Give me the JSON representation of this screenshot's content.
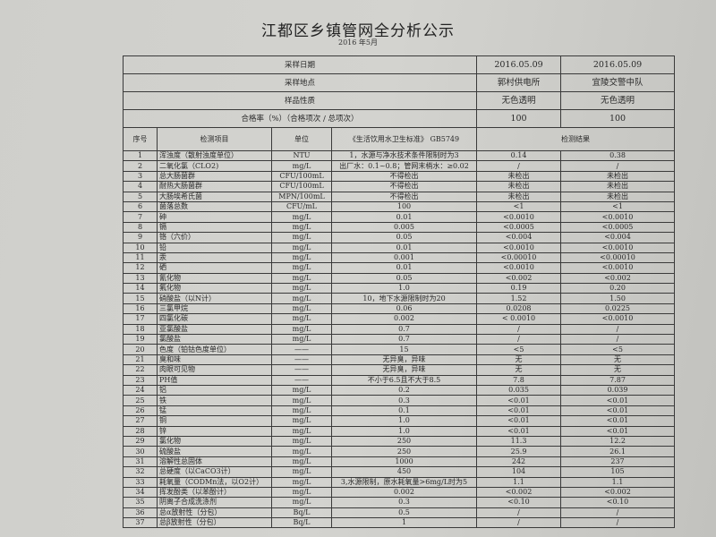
{
  "title": "江都区乡镇管网全分析公示",
  "subtitle": "2016 年5月",
  "header_rows": [
    {
      "label": "采样日期",
      "values": [
        "2016.05.09",
        "2016.05.09"
      ]
    },
    {
      "label": "采样地点",
      "values": [
        "郭村供电所",
        "宜陵交警中队"
      ]
    },
    {
      "label": "样品性质",
      "values": [
        "无色透明",
        "无色透明"
      ]
    },
    {
      "label": "合格率（%）（合格项次 / 总项次）",
      "values": [
        "100",
        "100"
      ]
    }
  ],
  "columns": {
    "seq": "序号",
    "item": "检测项目",
    "unit": "单位",
    "standard": "《生活饮用水卫生标准》 GB5749",
    "result": "检测结果"
  },
  "rows": [
    [
      "1",
      "浑浊度（散射浊度单位）",
      "NTU",
      "1，水源与净水技术条件限制时为3",
      "0.14",
      "0.38"
    ],
    [
      "2",
      "二氧化氯（CLO2)",
      "mg/L",
      "出厂水：0.1~0.8；管网末梢水：≥0.02",
      "/",
      "/"
    ],
    [
      "3",
      "总大肠菌群",
      "CFU/100mL",
      "不得检出",
      "未检出",
      "未检出"
    ],
    [
      "4",
      "耐热大肠菌群",
      "CFU/100mL",
      "不得检出",
      "未检出",
      "未检出"
    ],
    [
      "5",
      "大肠埃希氏菌",
      "MPN/100mL",
      "不得检出",
      "未检出",
      "未检出"
    ],
    [
      "6",
      "菌落总数",
      "CFU/mL",
      "100",
      "<1",
      "<1"
    ],
    [
      "7",
      "砷",
      "mg/L",
      "0.01",
      "<0.0010",
      "<0.0010"
    ],
    [
      "8",
      "镉",
      "mg/L",
      "0.005",
      "<0.0005",
      "<0.0005"
    ],
    [
      "9",
      "铬（六价）",
      "mg/L",
      "0.05",
      "<0.004",
      "<0.004"
    ],
    [
      "10",
      "铅",
      "mg/L",
      "0.01",
      "<0.0010",
      "<0.0010"
    ],
    [
      "11",
      "汞",
      "mg/L",
      "0.001",
      "<0.00010",
      "<0.00010"
    ],
    [
      "12",
      "硒",
      "mg/L",
      "0.01",
      "<0.0010",
      "<0.0010"
    ],
    [
      "13",
      "氰化物",
      "mg/L",
      "0.05",
      "<0.002",
      "<0.002"
    ],
    [
      "14",
      "氟化物",
      "mg/L",
      "1.0",
      "0.19",
      "0.20"
    ],
    [
      "15",
      "硝酸盐（以N计）",
      "mg/L",
      "10，地下水源限制时为20",
      "1.52",
      "1.50"
    ],
    [
      "16",
      "三氯甲烷",
      "mg/L",
      "0.06",
      "0.0208",
      "0.0225"
    ],
    [
      "17",
      "四氯化碳",
      "mg/L",
      "0.002",
      "< 0.0010",
      "<0.0010"
    ],
    [
      "18",
      "亚氯酸盐",
      "mg/L",
      "0.7",
      "/",
      "/"
    ],
    [
      "19",
      "氯酸盐",
      "mg/L",
      "0.7",
      "/",
      "/"
    ],
    [
      "20",
      "色度（铂钴色度单位）",
      "——",
      "15",
      "<5",
      "<5"
    ],
    [
      "21",
      "臭和味",
      "——",
      "无异臭，异味",
      "无",
      "无"
    ],
    [
      "22",
      "肉眼可见物",
      "——",
      "无异臭，异味",
      "无",
      "无"
    ],
    [
      "23",
      "PH值",
      "——",
      "不小于6.5且不大于8.5",
      "7.8",
      "7.87"
    ],
    [
      "24",
      "铝",
      "mg/L",
      "0.2",
      "0.035",
      "0.039"
    ],
    [
      "25",
      "铁",
      "mg/L",
      "0.3",
      "<0.01",
      "<0.01"
    ],
    [
      "26",
      "锰",
      "mg/L",
      "0.1",
      "<0.01",
      "<0.01"
    ],
    [
      "27",
      "铜",
      "mg/L",
      "1.0",
      "<0.01",
      "<0.01"
    ],
    [
      "28",
      "锌",
      "mg/L",
      "1.0",
      "<0.01",
      "<0.01"
    ],
    [
      "29",
      "氯化物",
      "mg/L",
      "250",
      "11.3",
      "12.2"
    ],
    [
      "30",
      "硫酸盐",
      "mg/L",
      "250",
      "25.9",
      "26.1"
    ],
    [
      "31",
      "溶解性总固体",
      "mg/L",
      "1000",
      "242",
      "237"
    ],
    [
      "32",
      "总硬度（以CaCO3计）",
      "mg/L",
      "450",
      "104",
      "105"
    ],
    [
      "33",
      "耗氧量（CODMn法，以O2计）",
      "mg/L",
      "3,水源限制，原水耗氧量>6mg/L时为5",
      "1.1",
      "1.1"
    ],
    [
      "34",
      "挥发酚类（以苯酚计）",
      "mg/L",
      "0.002",
      "<0.002",
      "<0.002"
    ],
    [
      "35",
      "阴离子合成洗涤剂",
      "mg/L",
      "0.3",
      "<0.10",
      "<0.10"
    ],
    [
      "36",
      "总α放射性（分包）",
      "Bq/L",
      "0.5",
      "/",
      "/"
    ],
    [
      "37",
      "总β放射性（分包）",
      "Bq/L",
      "1",
      "/",
      "/"
    ]
  ]
}
